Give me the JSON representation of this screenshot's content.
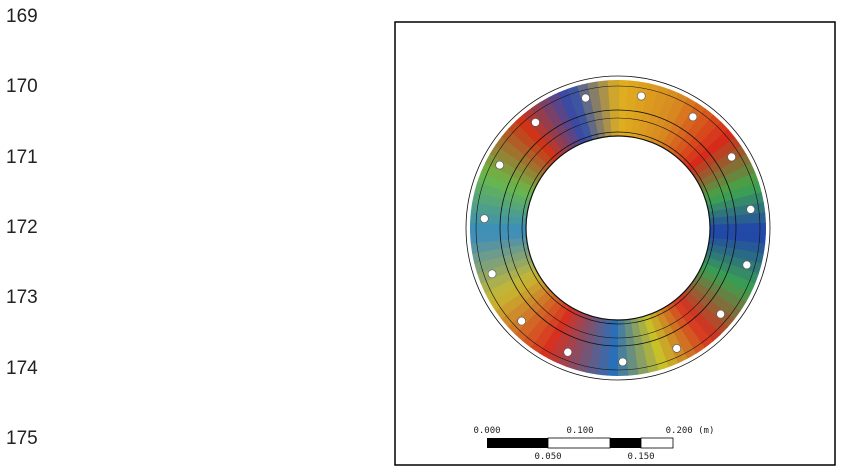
{
  "line_numbers": [
    "169",
    "170",
    "171",
    "172",
    "173",
    "174",
    "175"
  ],
  "figure": {
    "scale_bar": {
      "top_labels": [
        "0.000",
        "0.100",
        "0.200 (m)"
      ],
      "bottom_labels": [
        "0.050",
        "0.150"
      ]
    }
  }
}
